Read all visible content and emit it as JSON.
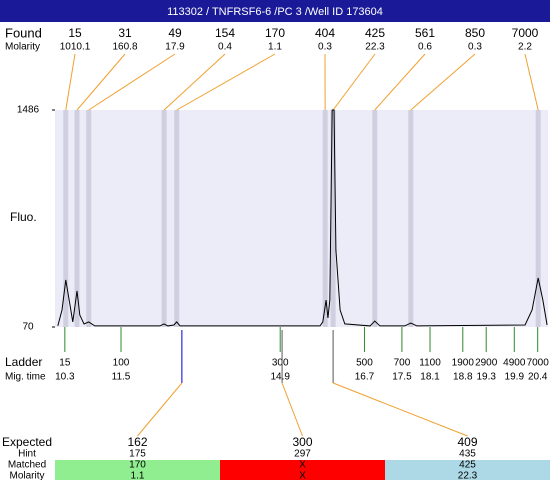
{
  "header": {
    "title": "113302 / TNFRSF6-6 /PC 3 /Well ID 173604"
  },
  "found": {
    "label": "Found",
    "molarity_label": "Molarity",
    "peaks": [
      {
        "size": 15,
        "molarity": 1010.1,
        "time": 10.32
      },
      {
        "size": 31,
        "molarity": 160.8,
        "time": 10.56
      },
      {
        "size": 49,
        "molarity": 17.9,
        "time": 10.81
      },
      {
        "size": 154,
        "molarity": 0.4,
        "time": 12.42
      },
      {
        "size": 170,
        "molarity": 1.1,
        "time": 12.69
      },
      {
        "size": 404,
        "molarity": 0.3,
        "time": 15.86
      },
      {
        "size": 425,
        "molarity": 22.3,
        "time": 16.03
      },
      {
        "size": 561,
        "molarity": 0.6,
        "time": 16.92
      },
      {
        "size": 850,
        "molarity": 0.3,
        "time": 17.69
      },
      {
        "size": 7000,
        "molarity": 2.2,
        "time": 20.41
      }
    ]
  },
  "axis": {
    "label": "Fluo.",
    "ylim": [
      70,
      1486
    ],
    "yticks": [
      70,
      1486
    ],
    "xlim": [
      10.09,
      20.62
    ]
  },
  "trace": {
    "x": [
      10.15,
      10.24,
      10.32,
      10.41,
      10.47,
      10.56,
      10.62,
      10.71,
      10.81,
      10.94,
      12.33,
      12.42,
      12.5,
      12.63,
      12.69,
      12.76,
      15.75,
      15.81,
      15.88,
      15.92,
      15.96,
      16.01,
      16.05,
      16.09,
      16.18,
      16.28,
      16.82,
      16.92,
      17.03,
      17.56,
      17.69,
      17.82,
      20.13,
      20.28,
      20.41,
      20.51,
      20.6
    ],
    "y": [
      77,
      181,
      377,
      214,
      103,
      305,
      148,
      90,
      103,
      77,
      77,
      90,
      77,
      83,
      103,
      77,
      77,
      103,
      246,
      129,
      246,
      1486,
      1486,
      572,
      181,
      90,
      77,
      109,
      77,
      77,
      96,
      77,
      83,
      181,
      390,
      246,
      83
    ]
  },
  "ladder": {
    "label": "Ladder",
    "time_label": "Mig. time",
    "sizes": [
      15,
      100,
      300,
      500,
      700,
      1100,
      1900,
      2900,
      4900,
      7000
    ],
    "times": [
      10.3,
      11.5,
      14.9,
      16.7,
      17.5,
      18.1,
      18.8,
      19.3,
      19.9,
      20.4
    ]
  },
  "expected": {
    "label": "Expected",
    "hint_label": "Hint",
    "matched_label": "Matched",
    "molarity_label": "Molarity",
    "columns": [
      {
        "expected": 162,
        "hint": 175,
        "matched": 170,
        "molarity": 1.1,
        "time": 12.8,
        "color": "#90ee90"
      },
      {
        "expected": 300,
        "hint": 297,
        "matched": "X",
        "molarity": "X",
        "time": 14.94,
        "color": "#ff0000"
      },
      {
        "expected": 409,
        "hint": 435,
        "matched": 425,
        "molarity": 22.3,
        "time": 16.03,
        "color": "#add8e6"
      }
    ]
  }
}
